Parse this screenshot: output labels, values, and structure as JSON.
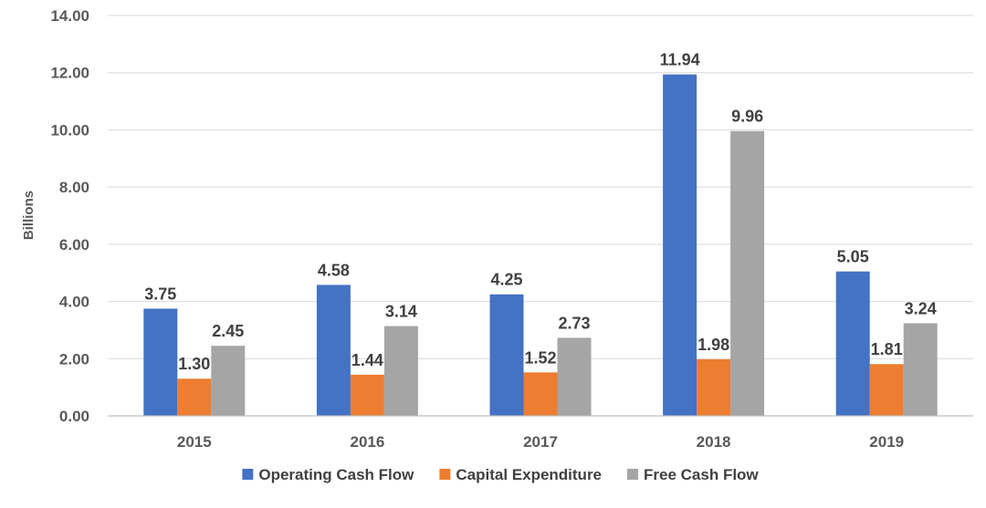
{
  "chart_data": {
    "type": "bar",
    "title": "",
    "xlabel": "",
    "ylabel": "Billions",
    "ylim": [
      0,
      14
    ],
    "ytick_step": 2,
    "ytick_decimals": 2,
    "grid": true,
    "legend_position": "bottom",
    "categories": [
      "2015",
      "2016",
      "2017",
      "2018",
      "2019"
    ],
    "series": [
      {
        "name": "Operating Cash Flow",
        "color": "#4472c4",
        "values": [
          3.75,
          4.58,
          4.25,
          11.94,
          5.05
        ]
      },
      {
        "name": "Capital Expenditure",
        "color": "#ed7d31",
        "values": [
          1.3,
          1.44,
          1.52,
          1.98,
          1.81
        ]
      },
      {
        "name": "Free Cash Flow",
        "color": "#a5a5a5",
        "values": [
          2.45,
          3.14,
          2.73,
          9.96,
          3.24
        ]
      }
    ]
  }
}
